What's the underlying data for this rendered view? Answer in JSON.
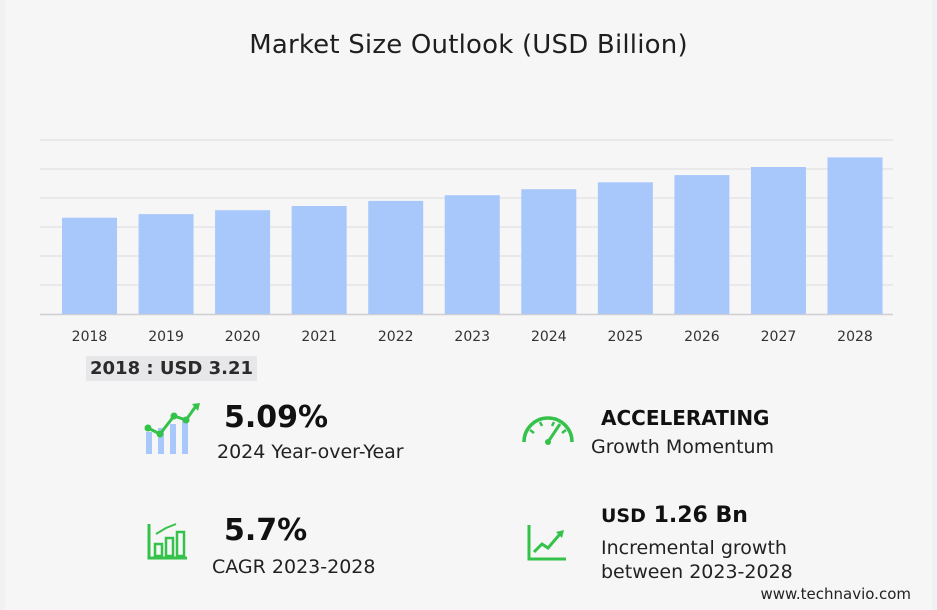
{
  "title": "Market Size Outlook (USD Billion)",
  "chart_data": {
    "type": "bar",
    "categories": [
      "2018",
      "2019",
      "2020",
      "2021",
      "2022",
      "2023",
      "2024",
      "2025",
      "2026",
      "2027",
      "2028"
    ],
    "values": [
      3.21,
      3.33,
      3.46,
      3.6,
      3.77,
      3.96,
      4.16,
      4.39,
      4.63,
      4.9,
      5.22
    ],
    "ylim": [
      0,
      5.8
    ],
    "grid": true,
    "bar_color": "#a8c8fb",
    "grid_color": "#dcdcdf",
    "title": "Market Size Outlook (USD Billion)"
  },
  "baseline_label": "2018 : USD  3.21",
  "stats": {
    "yoy_value": "5.09%",
    "yoy_label": "2024 Year-over-Year",
    "momentum_value": "ACCELERATING",
    "momentum_label": "Growth Momentum",
    "cagr_value": "5.7%",
    "cagr_label": "CAGR 2023-2028",
    "incremental_prefix": "USD",
    "incremental_value": "1.26 Bn",
    "incremental_label_1": "Incremental growth",
    "incremental_label_2": "between 2023-2028"
  },
  "icons": {
    "yoy": "bar-growth-icon",
    "momentum": "speedometer-icon",
    "cagr": "bar-chart-icon",
    "incremental": "line-chart-icon",
    "accent_green": "#35c24a",
    "accent_blue": "#a8c8fb"
  },
  "footer": "www.technavio.com"
}
